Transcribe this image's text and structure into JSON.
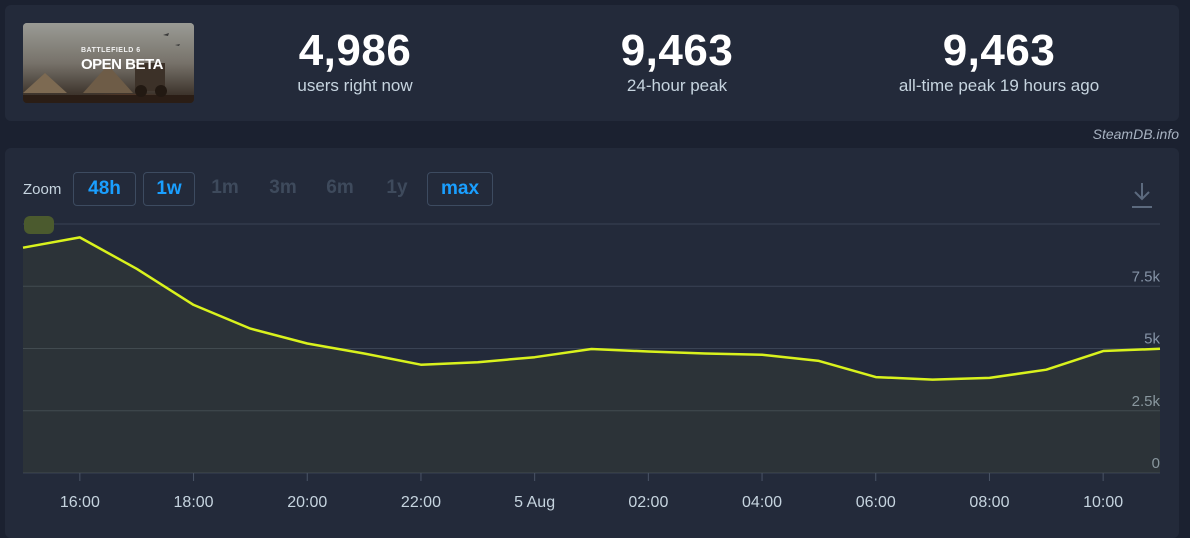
{
  "game": {
    "thumbnail_title": "BATTLEFIELD 6",
    "thumbnail_subtitle": "OPEN BETA"
  },
  "stats": [
    {
      "value": "4,986",
      "label": "users right now"
    },
    {
      "value": "9,463",
      "label": "24-hour peak"
    },
    {
      "value": "9,463",
      "label": "all-time peak 19 hours ago"
    }
  ],
  "credit": "SteamDB.info",
  "zoom": {
    "label": "Zoom",
    "buttons": [
      {
        "label": "48h",
        "enabled": true
      },
      {
        "label": "1w",
        "enabled": true
      },
      {
        "label": "1m",
        "enabled": false
      },
      {
        "label": "3m",
        "enabled": false
      },
      {
        "label": "6m",
        "enabled": false
      },
      {
        "label": "1y",
        "enabled": false
      },
      {
        "label": "max",
        "enabled": true
      }
    ]
  },
  "colors": {
    "line": "#d9f21d",
    "accent": "#1a9fff",
    "grid": "#3a4354"
  },
  "chart_data": {
    "type": "line",
    "x": [
      "15:00",
      "16:00",
      "17:00",
      "18:00",
      "19:00",
      "20:00",
      "21:00",
      "22:00",
      "23:00",
      "5 Aug 00:00",
      "01:00",
      "02:00",
      "03:00",
      "04:00",
      "05:00",
      "06:00",
      "07:00",
      "08:00",
      "09:00",
      "10:00",
      "11:00"
    ],
    "xticks": [
      "16:00",
      "18:00",
      "20:00",
      "22:00",
      "5 Aug",
      "02:00",
      "04:00",
      "06:00",
      "08:00",
      "10:00"
    ],
    "yticks": [
      "0",
      "2.5k",
      "5k",
      "7.5k"
    ],
    "ylim": [
      0,
      10000
    ],
    "series": [
      {
        "values": [
          9050,
          9463,
          8200,
          6750,
          5800,
          5200,
          4800,
          4350,
          4450,
          4650,
          4980,
          4880,
          4800,
          4750,
          4500,
          3850,
          3750,
          3820,
          4150,
          4900,
          4986
        ]
      }
    ],
    "grid": true
  }
}
